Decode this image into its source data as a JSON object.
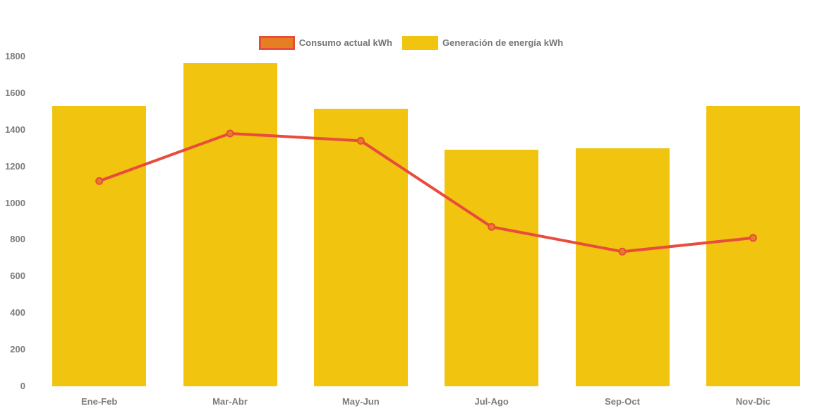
{
  "chart_data": {
    "type": "bar",
    "subtype": "bar-with-line-overlay",
    "title": "",
    "xlabel": "",
    "ylabel": "",
    "categories": [
      "Ene-Feb",
      "Mar-Abr",
      "May-Jun",
      "Jul-Ago",
      "Sep-Oct",
      "Nov-Dic"
    ],
    "series": [
      {
        "name": "Consumo actual kWh",
        "type": "line",
        "values": [
          1120,
          1380,
          1340,
          870,
          735,
          810
        ],
        "line_color": "#e74c3c",
        "point_fill": "#e67e22",
        "point_stroke": "#e74c3c"
      },
      {
        "name": "Generación de energía kWh",
        "type": "bar",
        "values": [
          1530,
          1765,
          1515,
          1290,
          1300,
          1530
        ],
        "bar_color": "#f1c40f"
      }
    ],
    "ylim": [
      0,
      1800
    ],
    "y_ticks": [
      0,
      200,
      400,
      600,
      800,
      1000,
      1200,
      1400,
      1600,
      1800
    ],
    "grid": false,
    "legend_position": "top",
    "background_color": "#ffffff",
    "axis_text_color": "#7d7d7d",
    "legend_text_color": "#757575"
  }
}
